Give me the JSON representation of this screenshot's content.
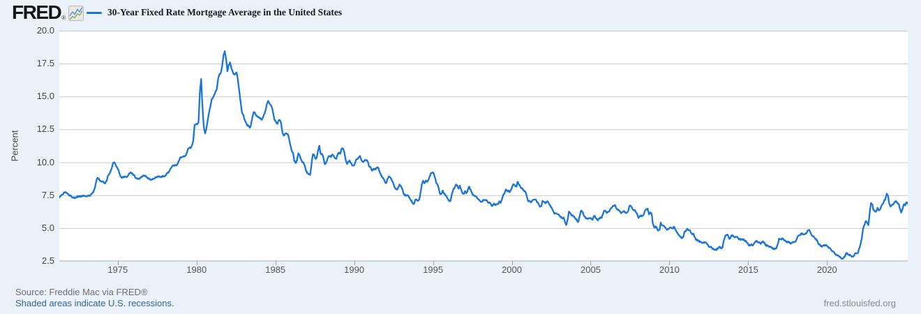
{
  "header": {
    "logo_text": "FRED",
    "registered_mark": "®",
    "legend_label": "30-Year Fixed Rate Mortgage Average in the United States"
  },
  "footer": {
    "source_line": "Source: Freddie Mac via FRED®",
    "recession_note": "Shaded areas indicate U.S. recessions.",
    "site_label": "fred.stlouisfed.org"
  },
  "chart_data": {
    "type": "line",
    "title": "30-Year Fixed Rate Mortgage Average in the United States",
    "ylabel": "Percent",
    "legend_position": "top-left",
    "grid": "horizontal",
    "ylim": [
      2.5,
      20.0
    ],
    "y_ticks": [
      20.0,
      17.5,
      15.0,
      12.5,
      10.0,
      7.5,
      5.0,
      2.5
    ],
    "y_tick_labels": [
      "20.0",
      "17.5",
      "15.0",
      "12.5",
      "10.0",
      "7.5",
      "5.0",
      "2.5"
    ],
    "x_ticks": [
      1975,
      1980,
      1985,
      1990,
      1995,
      2000,
      2005,
      2010,
      2015,
      2020
    ],
    "x_domain": [
      1971.29,
      2025.12
    ],
    "frequency": "monthly",
    "start": "1971-04",
    "end": "2025-02",
    "unit": "Percent",
    "colors": {
      "line": "#1b75d8",
      "grid": "#c9c9c9",
      "axis": "#a9aeb5",
      "tick": "#9aa0a6",
      "background": "#ebf1f9",
      "plot_background": "#ffffff",
      "link": "#336699",
      "source_text": "#6e6e6e",
      "axis_text": "#555555"
    },
    "series": [
      {
        "name": "30-Year Fixed Rate Mortgage Average in the United States",
        "values": [
          7.31,
          7.43,
          7.53,
          7.6,
          7.7,
          7.69,
          7.63,
          7.55,
          7.48,
          7.44,
          7.32,
          7.3,
          7.29,
          7.37,
          7.37,
          7.4,
          7.4,
          7.42,
          7.42,
          7.43,
          7.44,
          7.44,
          7.44,
          7.46,
          7.54,
          7.65,
          7.73,
          8.05,
          8.5,
          8.82,
          8.77,
          8.58,
          8.54,
          8.54,
          8.46,
          8.41,
          8.58,
          8.97,
          9.09,
          9.28,
          9.59,
          9.96,
          9.98,
          9.79,
          9.62,
          9.43,
          9.1,
          8.89,
          8.82,
          8.91,
          8.89,
          8.89,
          8.94,
          9.13,
          9.22,
          9.15,
          9.1,
          9.02,
          8.81,
          8.76,
          8.73,
          8.77,
          8.85,
          8.93,
          9.0,
          8.98,
          8.93,
          8.81,
          8.79,
          8.72,
          8.67,
          8.69,
          8.75,
          8.83,
          8.86,
          8.94,
          8.94,
          8.9,
          8.92,
          8.92,
          8.96,
          9.02,
          9.16,
          9.2,
          9.36,
          9.57,
          9.71,
          9.74,
          9.79,
          9.76,
          9.86,
          10.11,
          10.35,
          10.39,
          10.41,
          10.43,
          10.5,
          10.69,
          11.04,
          11.09,
          11.09,
          11.3,
          11.64,
          12.83,
          12.9,
          12.88,
          13.04,
          15.28,
          16.33,
          14.26,
          12.71,
          12.19,
          12.56,
          13.2,
          13.79,
          14.21,
          14.79,
          14.9,
          15.13,
          15.4,
          15.58,
          16.4,
          16.7,
          16.83,
          17.29,
          18.16,
          18.45,
          17.83,
          16.92,
          17.4,
          17.6,
          17.16,
          16.89,
          16.68,
          16.7,
          16.82,
          16.27,
          15.43,
          14.61,
          13.83,
          13.62,
          13.25,
          13.04,
          12.8,
          12.78,
          12.63,
          12.87,
          13.43,
          13.81,
          13.73,
          13.54,
          13.44,
          13.42,
          13.37,
          13.23,
          13.39,
          13.65,
          13.94,
          14.42,
          14.67,
          14.47,
          14.35,
          14.13,
          13.64,
          13.18,
          13.08,
          12.92,
          13.17,
          13.2,
          12.91,
          12.22,
          12.03,
          12.19,
          12.19,
          12.14,
          11.78,
          11.26,
          10.88,
          10.71,
          10.08,
          9.94,
          10.14,
          10.68,
          10.51,
          10.2,
          10.01,
          9.97,
          9.7,
          9.31,
          9.2,
          9.08,
          9.04,
          9.83,
          10.6,
          10.54,
          10.28,
          10.33,
          10.89,
          11.26,
          10.65,
          10.64,
          10.38,
          9.89,
          9.93,
          10.2,
          10.46,
          10.46,
          10.43,
          10.6,
          10.48,
          10.3,
          10.27,
          10.61,
          10.73,
          10.65,
          11.03,
          11.05,
          10.77,
          10.2,
          9.88,
          9.99,
          10.13,
          9.95,
          9.77,
          9.74,
          9.9,
          10.2,
          10.27,
          10.37,
          10.48,
          10.16,
          10.04,
          10.1,
          10.18,
          10.17,
          10.01,
          9.67,
          9.64,
          9.37,
          9.5,
          9.49,
          9.47,
          9.62,
          9.58,
          9.24,
          9.01,
          8.86,
          8.71,
          8.5,
          8.43,
          8.76,
          8.94,
          8.85,
          8.67,
          8.51,
          8.13,
          7.98,
          7.92,
          8.09,
          8.31,
          8.21,
          7.99,
          7.68,
          7.5,
          7.47,
          7.47,
          7.42,
          7.21,
          7.11,
          6.92,
          6.83,
          7.16,
          7.17,
          7.06,
          7.15,
          7.68,
          8.32,
          8.6,
          8.4,
          8.61,
          8.51,
          8.64,
          8.93,
          9.17,
          9.2,
          9.15,
          8.83,
          8.46,
          8.32,
          7.96,
          7.57,
          7.61,
          7.86,
          7.64,
          7.48,
          7.38,
          7.2,
          7.03,
          7.08,
          7.62,
          7.93,
          8.07,
          8.32,
          8.25,
          8.0,
          8.23,
          7.92,
          7.62,
          7.6,
          7.82,
          7.65,
          7.9,
          8.14,
          7.94,
          7.69,
          7.5,
          7.48,
          7.43,
          7.29,
          7.21,
          7.1,
          6.99,
          7.04,
          7.13,
          7.14,
          7.14,
          7.0,
          6.95,
          6.92,
          6.72,
          6.71,
          6.87,
          6.74,
          6.79,
          6.81,
          7.04,
          6.92,
          7.15,
          7.55,
          7.63,
          7.94,
          7.82,
          7.85,
          7.74,
          7.91,
          8.21,
          8.33,
          8.24,
          8.15,
          8.52,
          8.29,
          8.15,
          8.03,
          7.91,
          7.8,
          7.75,
          7.38,
          7.03,
          7.05,
          6.95,
          7.08,
          7.15,
          7.16,
          7.13,
          6.95,
          6.82,
          6.62,
          6.66,
          7.07,
          7.0,
          6.89,
          7.01,
          6.99,
          6.81,
          6.65,
          6.49,
          6.29,
          6.09,
          6.11,
          6.07,
          6.05,
          5.92,
          5.84,
          5.75,
          5.81,
          5.48,
          5.23,
          5.63,
          6.26,
          6.15,
          5.95,
          5.93,
          5.88,
          5.71,
          5.64,
          5.45,
          5.83,
          6.27,
          6.29,
          6.06,
          5.87,
          5.75,
          5.72,
          5.73,
          5.75,
          5.71,
          5.63,
          5.93,
          5.86,
          5.72,
          5.58,
          5.7,
          5.82,
          5.77,
          6.07,
          6.33,
          6.27,
          6.15,
          6.25,
          6.32,
          6.51,
          6.6,
          6.68,
          6.76,
          6.52,
          6.4,
          6.36,
          6.24,
          6.14,
          6.22,
          6.29,
          6.16,
          6.18,
          6.26,
          6.66,
          6.7,
          6.57,
          6.38,
          6.38,
          6.21,
          6.1,
          5.76,
          5.92,
          5.97,
          5.92,
          6.04,
          6.32,
          6.43,
          6.48,
          6.04,
          6.2,
          6.09,
          5.29,
          5.05,
          5.13,
          5.0,
          4.81,
          4.86,
          5.42,
          5.22,
          5.19,
          5.06,
          4.95,
          4.88,
          4.93,
          5.03,
          4.99,
          4.97,
          5.1,
          4.89,
          4.74,
          4.56,
          4.43,
          4.35,
          4.23,
          4.3,
          4.71,
          4.76,
          4.95,
          4.84,
          4.84,
          4.64,
          4.51,
          4.55,
          4.27,
          4.11,
          4.07,
          3.99,
          3.96,
          3.92,
          3.89,
          3.95,
          3.91,
          3.8,
          3.68,
          3.55,
          3.6,
          3.5,
          3.38,
          3.35,
          3.35,
          3.41,
          3.53,
          3.57,
          3.45,
          3.54,
          4.07,
          4.37,
          4.46,
          4.49,
          4.19,
          4.26,
          4.46,
          4.43,
          4.3,
          4.34,
          4.34,
          4.19,
          4.16,
          4.13,
          4.12,
          4.16,
          4.04,
          4.0,
          3.86,
          3.67,
          3.71,
          3.77,
          3.67,
          3.84,
          3.98,
          4.05,
          3.91,
          3.89,
          3.8,
          3.94,
          3.96,
          3.87,
          3.66,
          3.69,
          3.61,
          3.6,
          3.57,
          3.44,
          3.44,
          3.46,
          3.47,
          3.77,
          4.2,
          4.15,
          4.17,
          4.2,
          4.05,
          4.01,
          3.9,
          3.97,
          3.88,
          3.81,
          3.9,
          3.92,
          3.95,
          4.03,
          4.33,
          4.44,
          4.47,
          4.59,
          4.57,
          4.53,
          4.55,
          4.63,
          4.83,
          4.87,
          4.64,
          4.46,
          4.37,
          4.27,
          4.14,
          4.07,
          3.8,
          3.77,
          3.62,
          3.61,
          3.69,
          3.7,
          3.72,
          3.62,
          3.47,
          3.45,
          3.31,
          3.23,
          3.16,
          3.02,
          2.94,
          2.89,
          2.83,
          2.77,
          2.68,
          2.74,
          2.81,
          3.08,
          3.06,
          2.96,
          2.98,
          2.87,
          2.84,
          2.9,
          3.07,
          3.07,
          3.1,
          3.45,
          3.76,
          4.17,
          4.98,
          5.23,
          5.52,
          5.41,
          5.22,
          6.11,
          6.9,
          6.81,
          6.36,
          6.27,
          6.26,
          6.54,
          6.34,
          6.43,
          6.71,
          6.84,
          7.07,
          7.2,
          7.62,
          7.44,
          6.82,
          6.64,
          6.78,
          6.82,
          6.99,
          7.06,
          6.92,
          6.85,
          6.5,
          6.18,
          6.43,
          6.81,
          6.72,
          6.96,
          6.84
        ]
      }
    ]
  }
}
